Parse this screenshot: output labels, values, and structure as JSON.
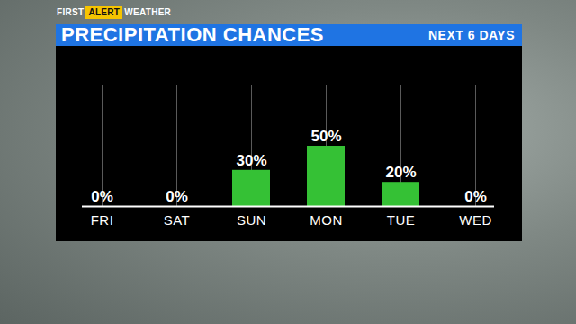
{
  "chart_data": {
    "type": "bar",
    "title": "PRECIPITATION CHANCES",
    "subtitle": "NEXT 6 DAYS",
    "annotations": [
      "FIRST",
      "ALERT",
      "WEATHER"
    ],
    "categories": [
      "FRI",
      "SAT",
      "SUN",
      "MON",
      "TUE",
      "WED"
    ],
    "values": [
      0,
      0,
      30,
      50,
      20,
      0
    ],
    "value_labels": [
      "0%",
      "0%",
      "30%",
      "50%",
      "20%",
      "0%"
    ],
    "color": "#35c135",
    "ylim": [
      0,
      100
    ],
    "yticks": [],
    "grid": true,
    "data_labels": true,
    "tick_labels": "x"
  }
}
